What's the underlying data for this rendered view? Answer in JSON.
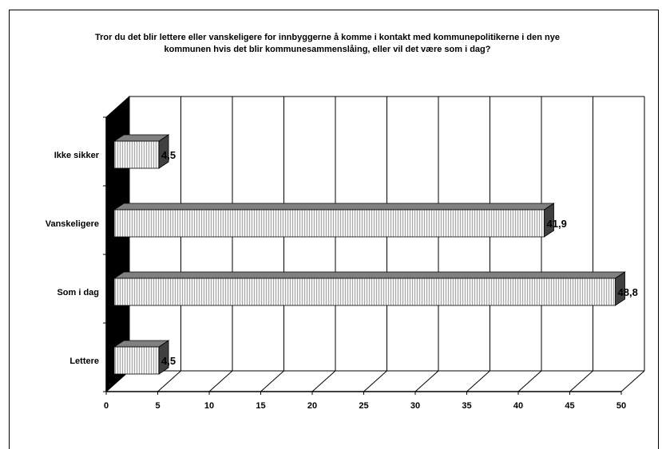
{
  "chart_data": {
    "type": "bar",
    "orientation": "horizontal",
    "title": "Tror du det blir lettere eller vanskeligere for innbyggerne å komme i kontakt med kommunepolitikerne i den nye kommunen hvis det blir kommunesammenslåing, eller vil det være som i dag?",
    "categories": [
      "Ikke sikker",
      "Vanskeligere",
      "Som i dag",
      "Lettere"
    ],
    "values": [
      4.5,
      41.9,
      48.8,
      4.5
    ],
    "value_labels": [
      "4,5",
      "41,9",
      "48,8",
      "4,5"
    ],
    "xlim": [
      0,
      50
    ],
    "x_ticks": [
      "0",
      "5",
      "10",
      "15",
      "20",
      "25",
      "30",
      "35",
      "40",
      "45",
      "50"
    ],
    "grid": true,
    "legend": "none",
    "style": "3d",
    "colors": {
      "bar_face": "#f2f2f2",
      "bar_stripe": "#b0b0b0",
      "bar_top": "#808080",
      "bar_side": "#404040",
      "wall": "#000000"
    }
  }
}
